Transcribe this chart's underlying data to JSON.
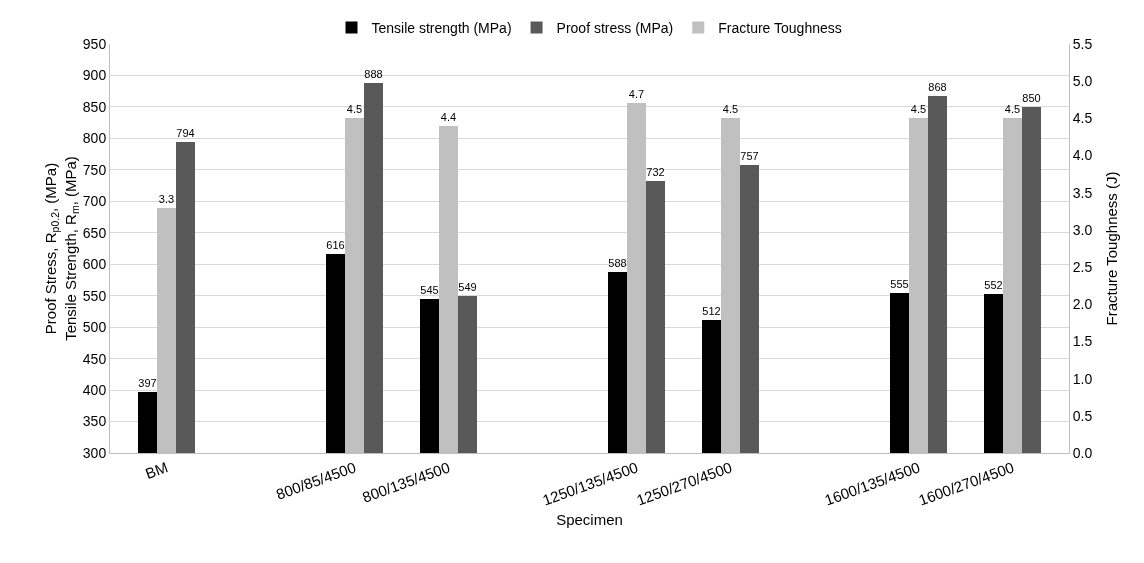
{
  "chart_data": {
    "type": "bar",
    "xlabel": "Specimen",
    "ylabel": "Proof Stress, R$_{p0.2}$, (MPa)\nTensile Strength, R$_{m}$, (MPa)",
    "y2label": "Fracture Toughness (J)",
    "categories": [
      "BM",
      null,
      "800/85/4500",
      "800/135/4500",
      null,
      "1250/135/4500",
      "1250/270/4500",
      null,
      "1600/135/4500",
      "1600/270/4500"
    ],
    "series": [
      {
        "name": "Tensile strength (MPa)",
        "color": "#000000",
        "values": [
          397,
          null,
          616,
          545,
          null,
          588,
          512,
          null,
          555,
          552
        ]
      },
      {
        "name": "Fracture Toughness",
        "color": "#c0c0c0",
        "axis": "y2",
        "values": [
          3.3,
          null,
          4.5,
          4.4,
          null,
          4.7,
          4.5,
          null,
          4.5,
          4.5
        ]
      },
      {
        "name": "Proof stress (MPa)",
        "color": "#595959",
        "values": [
          794,
          null,
          888,
          549,
          null,
          732,
          757,
          null,
          868,
          850
        ]
      }
    ],
    "ylim": [
      300,
      950
    ],
    "yticks": [
      300,
      350,
      400,
      450,
      500,
      550,
      600,
      650,
      700,
      750,
      800,
      850,
      900,
      950
    ],
    "y2lim": [
      0,
      5.5
    ],
    "y2ticks": [
      {
        "value": 0,
        "label": "0.0"
      },
      0.5,
      {
        "value": 1,
        "label": "1.0"
      },
      1.5,
      {
        "value": 2,
        "label": "2.0"
      },
      2.5,
      {
        "value": 3,
        "label": "3.0"
      },
      3.5,
      {
        "value": 4,
        "label": "4.0"
      },
      4.5,
      {
        "value": 5,
        "label": "5.0"
      },
      5.5
    ],
    "grid": "y",
    "legend": "top",
    "data_labels": true
  }
}
